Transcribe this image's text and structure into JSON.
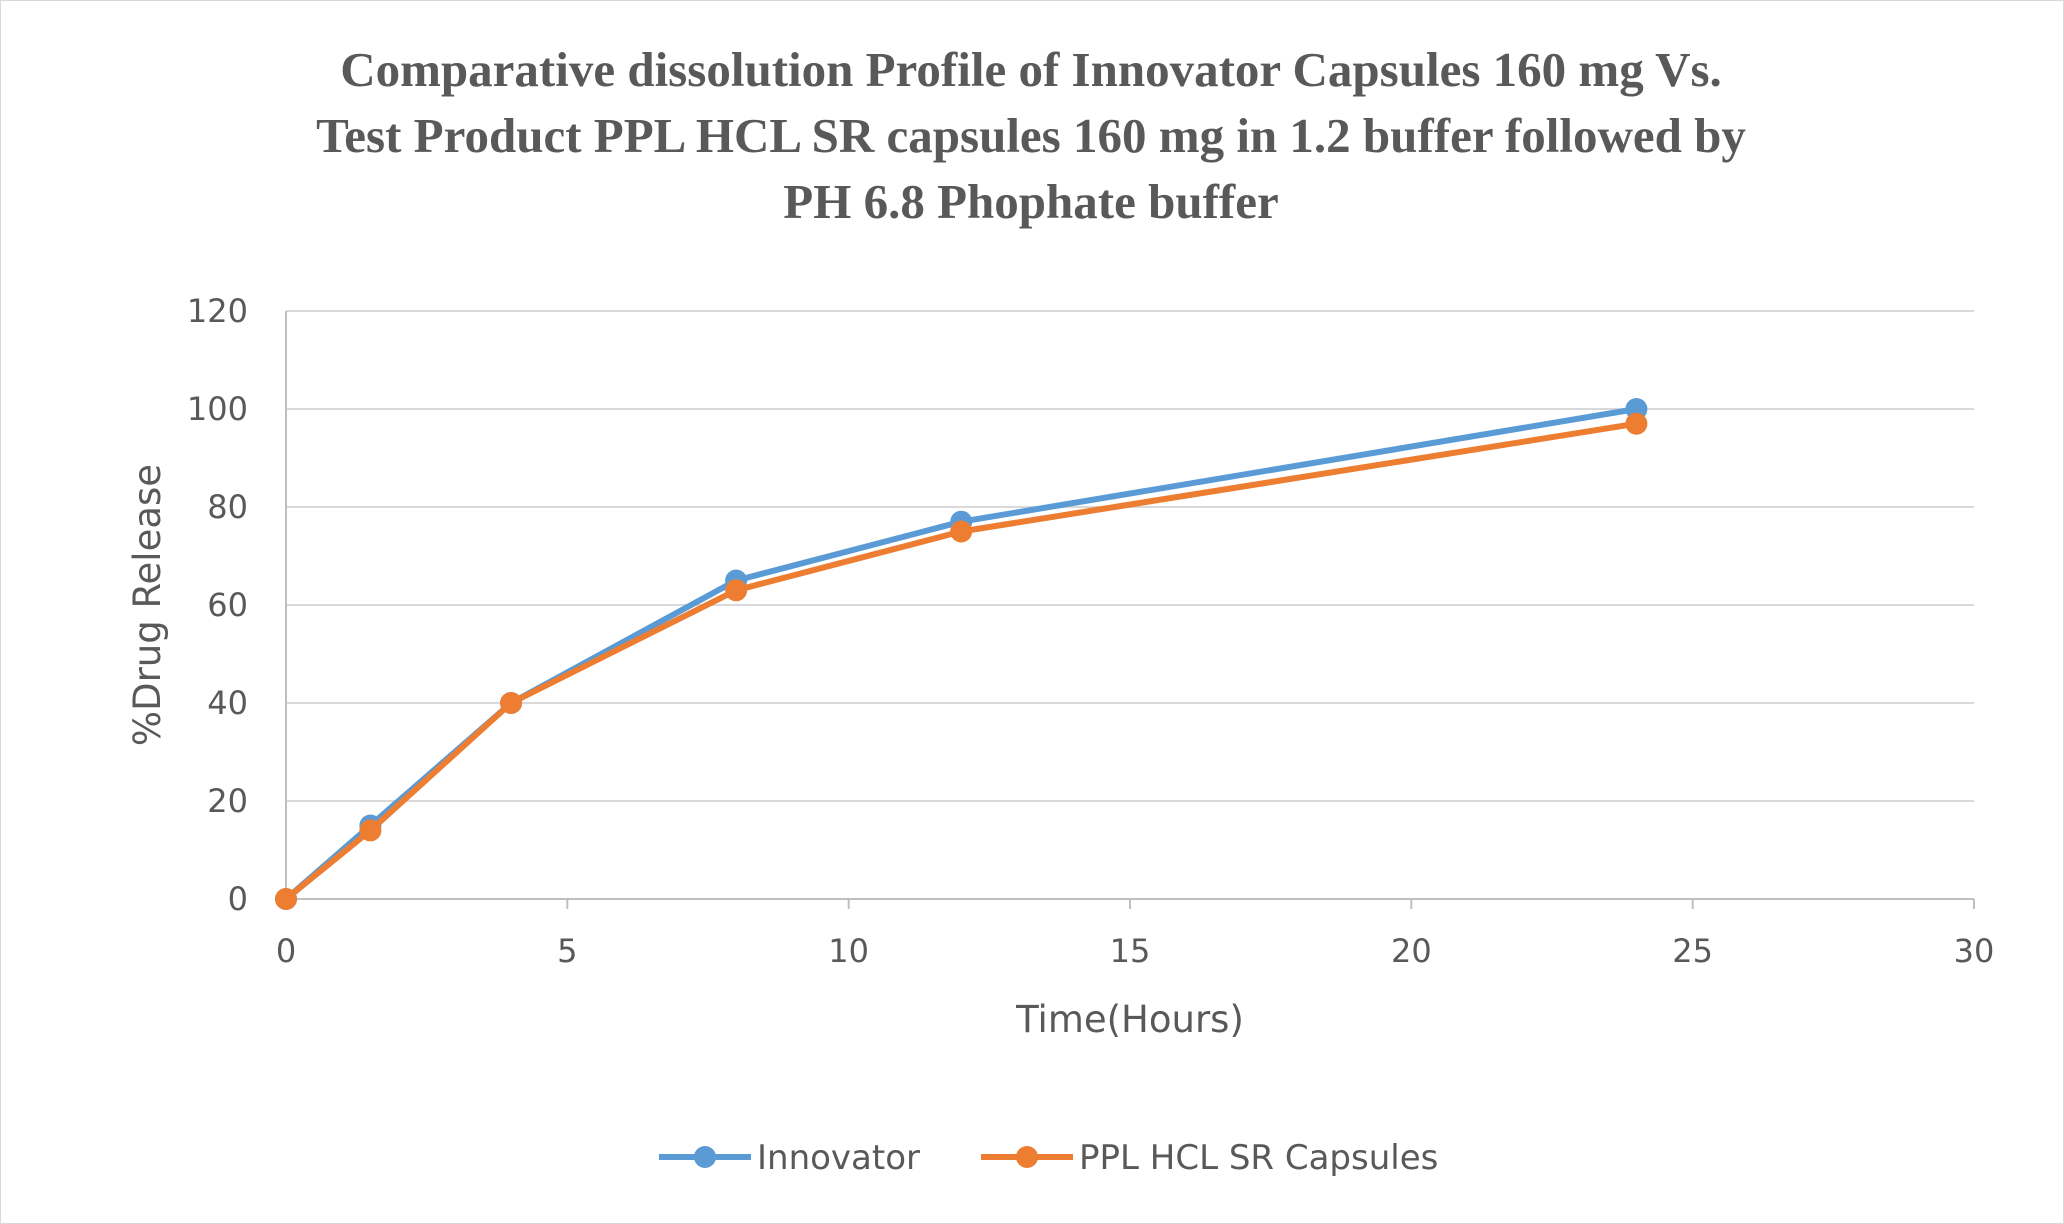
{
  "chart_data": {
    "type": "line",
    "title": "Comparative dissolution Profile of Innovator Capsules 160 mg Vs. Test Product PPL HCL SR capsules 160 mg in 1.2 buffer followed by PH 6.8 Phophate buffer",
    "title_lines": [
      "Comparative dissolution Profile of Innovator Capsules 160 mg Vs.",
      "Test Product PPL HCL SR capsules 160 mg in 1.2 buffer followed by",
      "PH 6.8 Phophate buffer"
    ],
    "xlabel": "Time(Hours)",
    "ylabel": "%Drug Release",
    "xlim": [
      0,
      30
    ],
    "ylim": [
      0,
      120
    ],
    "xticks": [
      0,
      5,
      10,
      15,
      20,
      25,
      30
    ],
    "yticks": [
      0,
      20,
      40,
      60,
      80,
      100,
      120
    ],
    "grid": "horizontal",
    "legend_position": "bottom",
    "series": [
      {
        "name": "Innovator",
        "color": "#5b9bd5",
        "x": [
          0,
          1.5,
          4,
          8,
          12,
          24
        ],
        "y": [
          0,
          15,
          40,
          65,
          77,
          100
        ]
      },
      {
        "name": "PPL HCL SR Capsules",
        "color": "#ed7d31",
        "x": [
          0,
          1.5,
          4,
          8,
          12,
          24
        ],
        "y": [
          0,
          14,
          40,
          63,
          75,
          97
        ]
      }
    ]
  }
}
